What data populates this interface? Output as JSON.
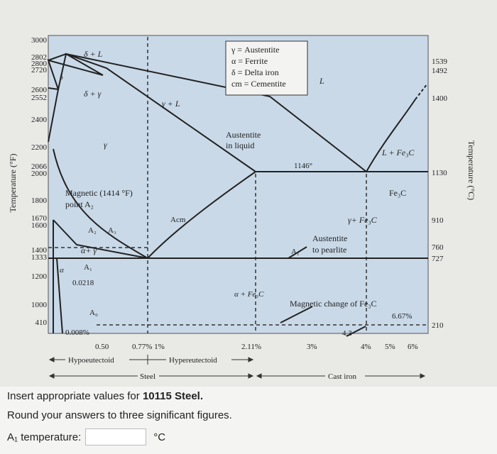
{
  "diagram": {
    "legend": [
      "γ = Austentite",
      "α = Ferrite",
      "δ = Delta iron",
      "cm = Cementite"
    ],
    "y_axis_left_label": "Temperature (°F)",
    "y_axis_right_label": "Temperature (°C)",
    "left_ticks": [
      "3000",
      "2802",
      "2800",
      "2720",
      "2600",
      "2552",
      "2400",
      "2200",
      "2066",
      "2000",
      "1800",
      "1670",
      "1600",
      "1400",
      "1333",
      "1200",
      "1000",
      "410"
    ],
    "right_ticks": [
      "1539",
      "1492",
      "1400",
      "1130",
      "910",
      "760",
      "727",
      "210"
    ],
    "region_labels": {
      "delta_l": "δ + L",
      "delta": "δ",
      "delta_gamma": "δ + γ",
      "gamma_l": "γ + L",
      "liquid": "L",
      "gamma": "γ",
      "austentite_liquid_1": "Austentite",
      "austentite_liquid_2": "in liquid",
      "eutectic_temp": "1146°",
      "l_fe3c": "L + Fe₃C",
      "fe3c": "Fe₃C",
      "magnetic_1": "Magnetic (1414 °F)",
      "magnetic_2": "point A₂",
      "acm": "Acm",
      "gamma_fe3c": "γ+ Fe₃C",
      "a2": "A₂",
      "a3": "A₃",
      "alpha_gamma": "α+ γ",
      "a1": "A₁",
      "alpha": "α",
      "c_0218": "0.0218",
      "austentite_pearlite_1": "Austentite",
      "austentite_pearlite_2": "to pearlite",
      "a1_right": "A₁",
      "alpha_fe3c": "α + Fe₃C",
      "magnetic_fe3c": "Magnetic change of Fe₃C",
      "c_667": "6.67%",
      "a0": "A₀",
      "c_0008": "0.008%",
      "c_43": "4.3"
    },
    "x_ticks": [
      "0.50",
      "0.77% 1%",
      "2.11%",
      "3%",
      "4%",
      "5%",
      "6%"
    ],
    "ranges": {
      "hypoeutectoid": "Hypoeutectoid",
      "hypereutectoid": "Hypereutectoid",
      "steel": "Steel",
      "cast_iron": "Cast iron"
    }
  },
  "question": {
    "line1_prefix": "Insert appropriate values for ",
    "steel": "10115 Steel.",
    "line2": "Round your answers to three significant figures.",
    "answer_label": "A₁ temperature:",
    "answer_value": "",
    "unit": "°C"
  }
}
